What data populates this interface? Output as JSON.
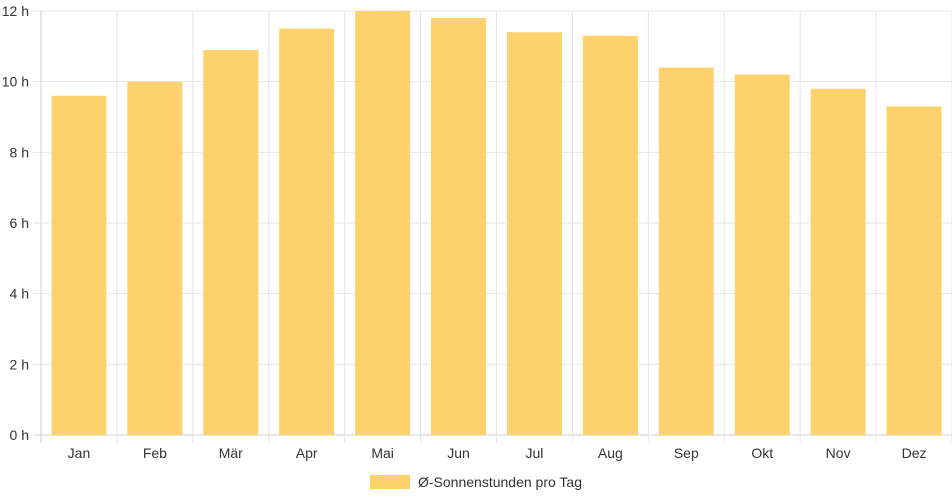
{
  "chart_data": {
    "type": "bar",
    "categories": [
      "Jan",
      "Feb",
      "Mär",
      "Apr",
      "Mai",
      "Jun",
      "Jul",
      "Aug",
      "Sep",
      "Okt",
      "Nov",
      "Dez"
    ],
    "series": [
      {
        "name": "Ø-Sonnenstunden pro Tag",
        "values": [
          9.6,
          10.0,
          10.9,
          11.5,
          12.0,
          11.8,
          11.4,
          11.3,
          10.4,
          10.2,
          9.8,
          9.3
        ],
        "color": "#fdd16b"
      }
    ],
    "y_ticks": [
      "0 h",
      "2 h",
      "4 h",
      "6 h",
      "8 h",
      "10 h",
      "12 h"
    ],
    "ylim": [
      0,
      12
    ],
    "grid": true,
    "legend_position": "bottom"
  }
}
